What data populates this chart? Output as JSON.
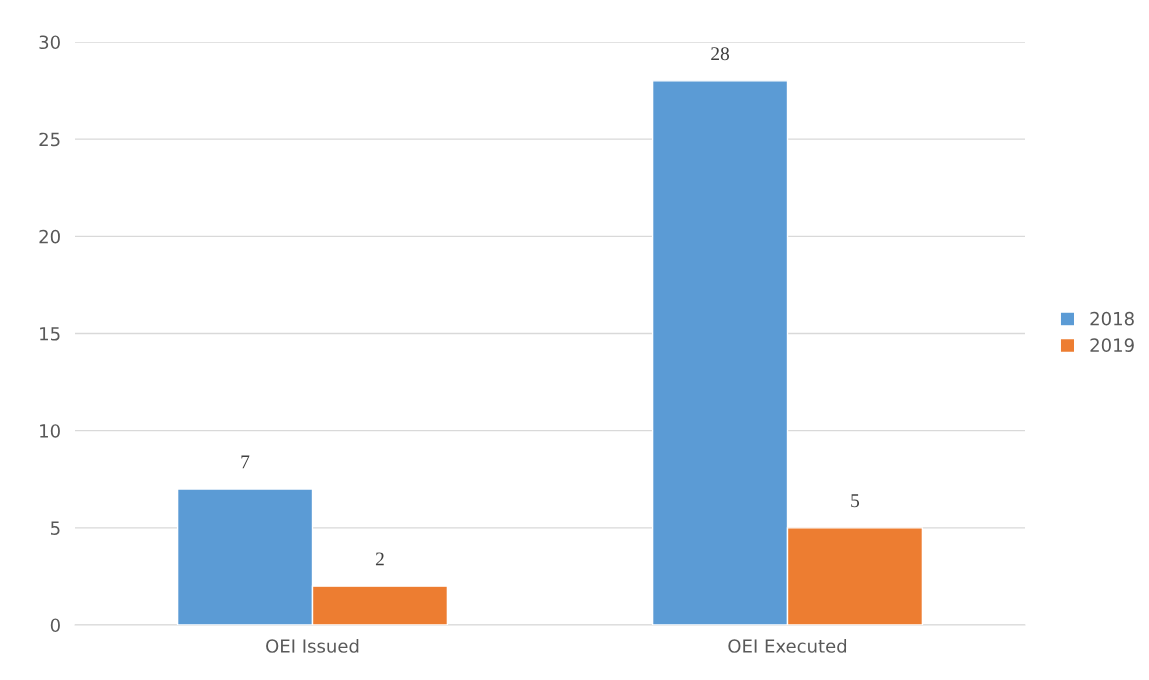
{
  "chart_data": {
    "type": "bar",
    "categories": [
      "OEI Issued",
      "OEI Executed"
    ],
    "series": [
      {
        "name": "2018",
        "color": "#5b9bd5",
        "values": [
          7,
          28
        ]
      },
      {
        "name": "2019",
        "color": "#ed7d31",
        "values": [
          2,
          5
        ]
      }
    ],
    "ylim": [
      0,
      30
    ],
    "yticks": [
      0,
      5,
      10,
      15,
      20,
      25,
      30
    ],
    "grid": "y",
    "legend": "right",
    "data_labels": true
  }
}
